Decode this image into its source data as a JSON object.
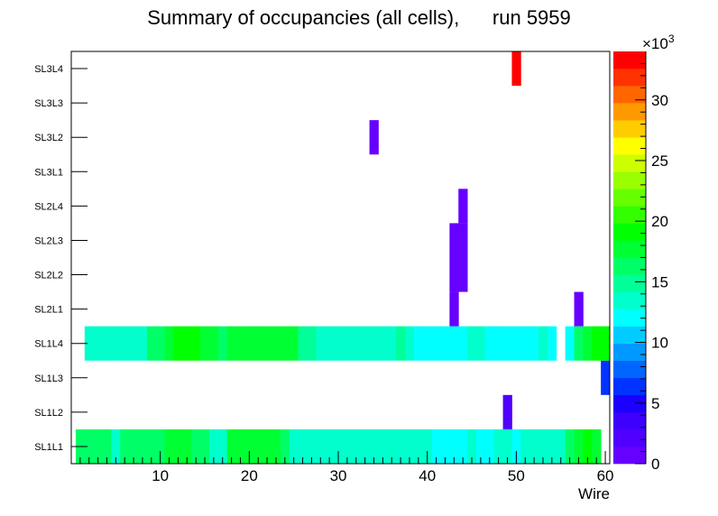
{
  "chart_data": {
    "type": "heatmap",
    "title": "Summary of occupancies (all cells),      run 5959",
    "xlabel": "Wire",
    "ylabel": "",
    "xlim": [
      0,
      60.5
    ],
    "x_ticks": [
      10,
      20,
      30,
      40,
      50,
      60
    ],
    "y_categories": [
      "SL1L1",
      "SL1L2",
      "SL1L3",
      "SL1L4",
      "SL2L1",
      "SL2L2",
      "SL2L3",
      "SL2L4",
      "SL3L1",
      "SL3L2",
      "SL3L3",
      "SL3L4"
    ],
    "z_range": [
      0,
      34000
    ],
    "z_ticks": [
      0,
      5,
      10,
      15,
      20,
      25,
      30
    ],
    "z_multiplier": "×10",
    "z_multiplier_exp": "3",
    "cells": [
      {
        "row": 0,
        "wires": [
          1,
          2,
          3,
          4,
          5,
          6,
          7,
          8,
          9,
          10,
          11,
          12,
          13,
          14,
          15,
          16,
          17,
          18,
          19,
          20,
          21,
          22,
          23,
          24,
          25,
          26,
          27,
          28,
          29,
          30,
          31,
          32,
          33,
          34,
          35,
          36,
          37,
          38,
          39,
          40,
          41,
          42,
          43,
          44,
          45,
          46,
          47,
          48,
          49,
          50,
          51,
          52,
          53,
          54,
          55,
          56,
          57,
          58,
          59,
          60
        ],
        "values": [
          16500,
          16500,
          16500,
          16500,
          13500,
          16000,
          16500,
          16500,
          16500,
          16500,
          17500,
          17500,
          17000,
          16500,
          16500,
          14000,
          14000,
          17000,
          17000,
          17000,
          17000,
          17000,
          17000,
          16500,
          14000,
          14000,
          14000,
          14000,
          14000,
          14000,
          14000,
          14000,
          14000,
          13000,
          14000,
          14000,
          14000,
          14000,
          14000,
          14000,
          12500,
          12500,
          12500,
          12500,
          13500,
          12000,
          12000,
          13500,
          13000,
          12500,
          14000,
          14000,
          14000,
          14000,
          14000,
          16500,
          17000,
          19500,
          17500,
          0
        ]
      },
      {
        "row": 1,
        "wires": [
          49
        ],
        "values": [
          2000
        ]
      },
      {
        "row": 2,
        "wires": [
          60
        ],
        "values": [
          6000
        ]
      },
      {
        "row": 3,
        "wires": [
          2,
          3,
          4,
          5,
          6,
          7,
          8,
          9,
          10,
          11,
          12,
          13,
          14,
          15,
          16,
          17,
          18,
          19,
          20,
          21,
          22,
          23,
          24,
          25,
          26,
          27,
          28,
          29,
          30,
          31,
          32,
          33,
          34,
          35,
          36,
          37,
          38,
          39,
          40,
          41,
          42,
          43,
          44,
          45,
          46,
          47,
          48,
          49,
          50,
          51,
          52,
          53,
          54,
          55,
          56,
          57,
          58,
          59,
          60
        ],
        "values": [
          13500,
          13500,
          13500,
          13500,
          13500,
          13500,
          13500,
          16500,
          16500,
          17000,
          19500,
          19500,
          19500,
          17500,
          17500,
          16500,
          17500,
          17000,
          17000,
          17000,
          17000,
          17000,
          17000,
          17000,
          14500,
          14500,
          13000,
          13500,
          13500,
          13500,
          13500,
          13500,
          13500,
          13500,
          13500,
          15500,
          13500,
          12000,
          12000,
          12000,
          12000,
          12000,
          12000,
          13000,
          13000,
          12000,
          12000,
          12000,
          12000,
          12000,
          12000,
          13000,
          12000,
          0,
          12000,
          16500,
          17500,
          19500,
          19500
        ]
      },
      {
        "row": 4,
        "wires": [
          43,
          57
        ],
        "values": [
          1000,
          1000
        ]
      },
      {
        "row": 5,
        "wires": [
          43,
          44
        ],
        "values": [
          1000,
          1000
        ]
      },
      {
        "row": 6,
        "wires": [
          43,
          44
        ],
        "values": [
          1000,
          1000
        ]
      },
      {
        "row": 7,
        "wires": [
          44
        ],
        "values": [
          1000
        ]
      },
      {
        "row": 9,
        "wires": [
          34
        ],
        "values": [
          1000
        ]
      },
      {
        "row": 11,
        "wires": [
          50
        ],
        "values": [
          33500
        ]
      }
    ]
  }
}
